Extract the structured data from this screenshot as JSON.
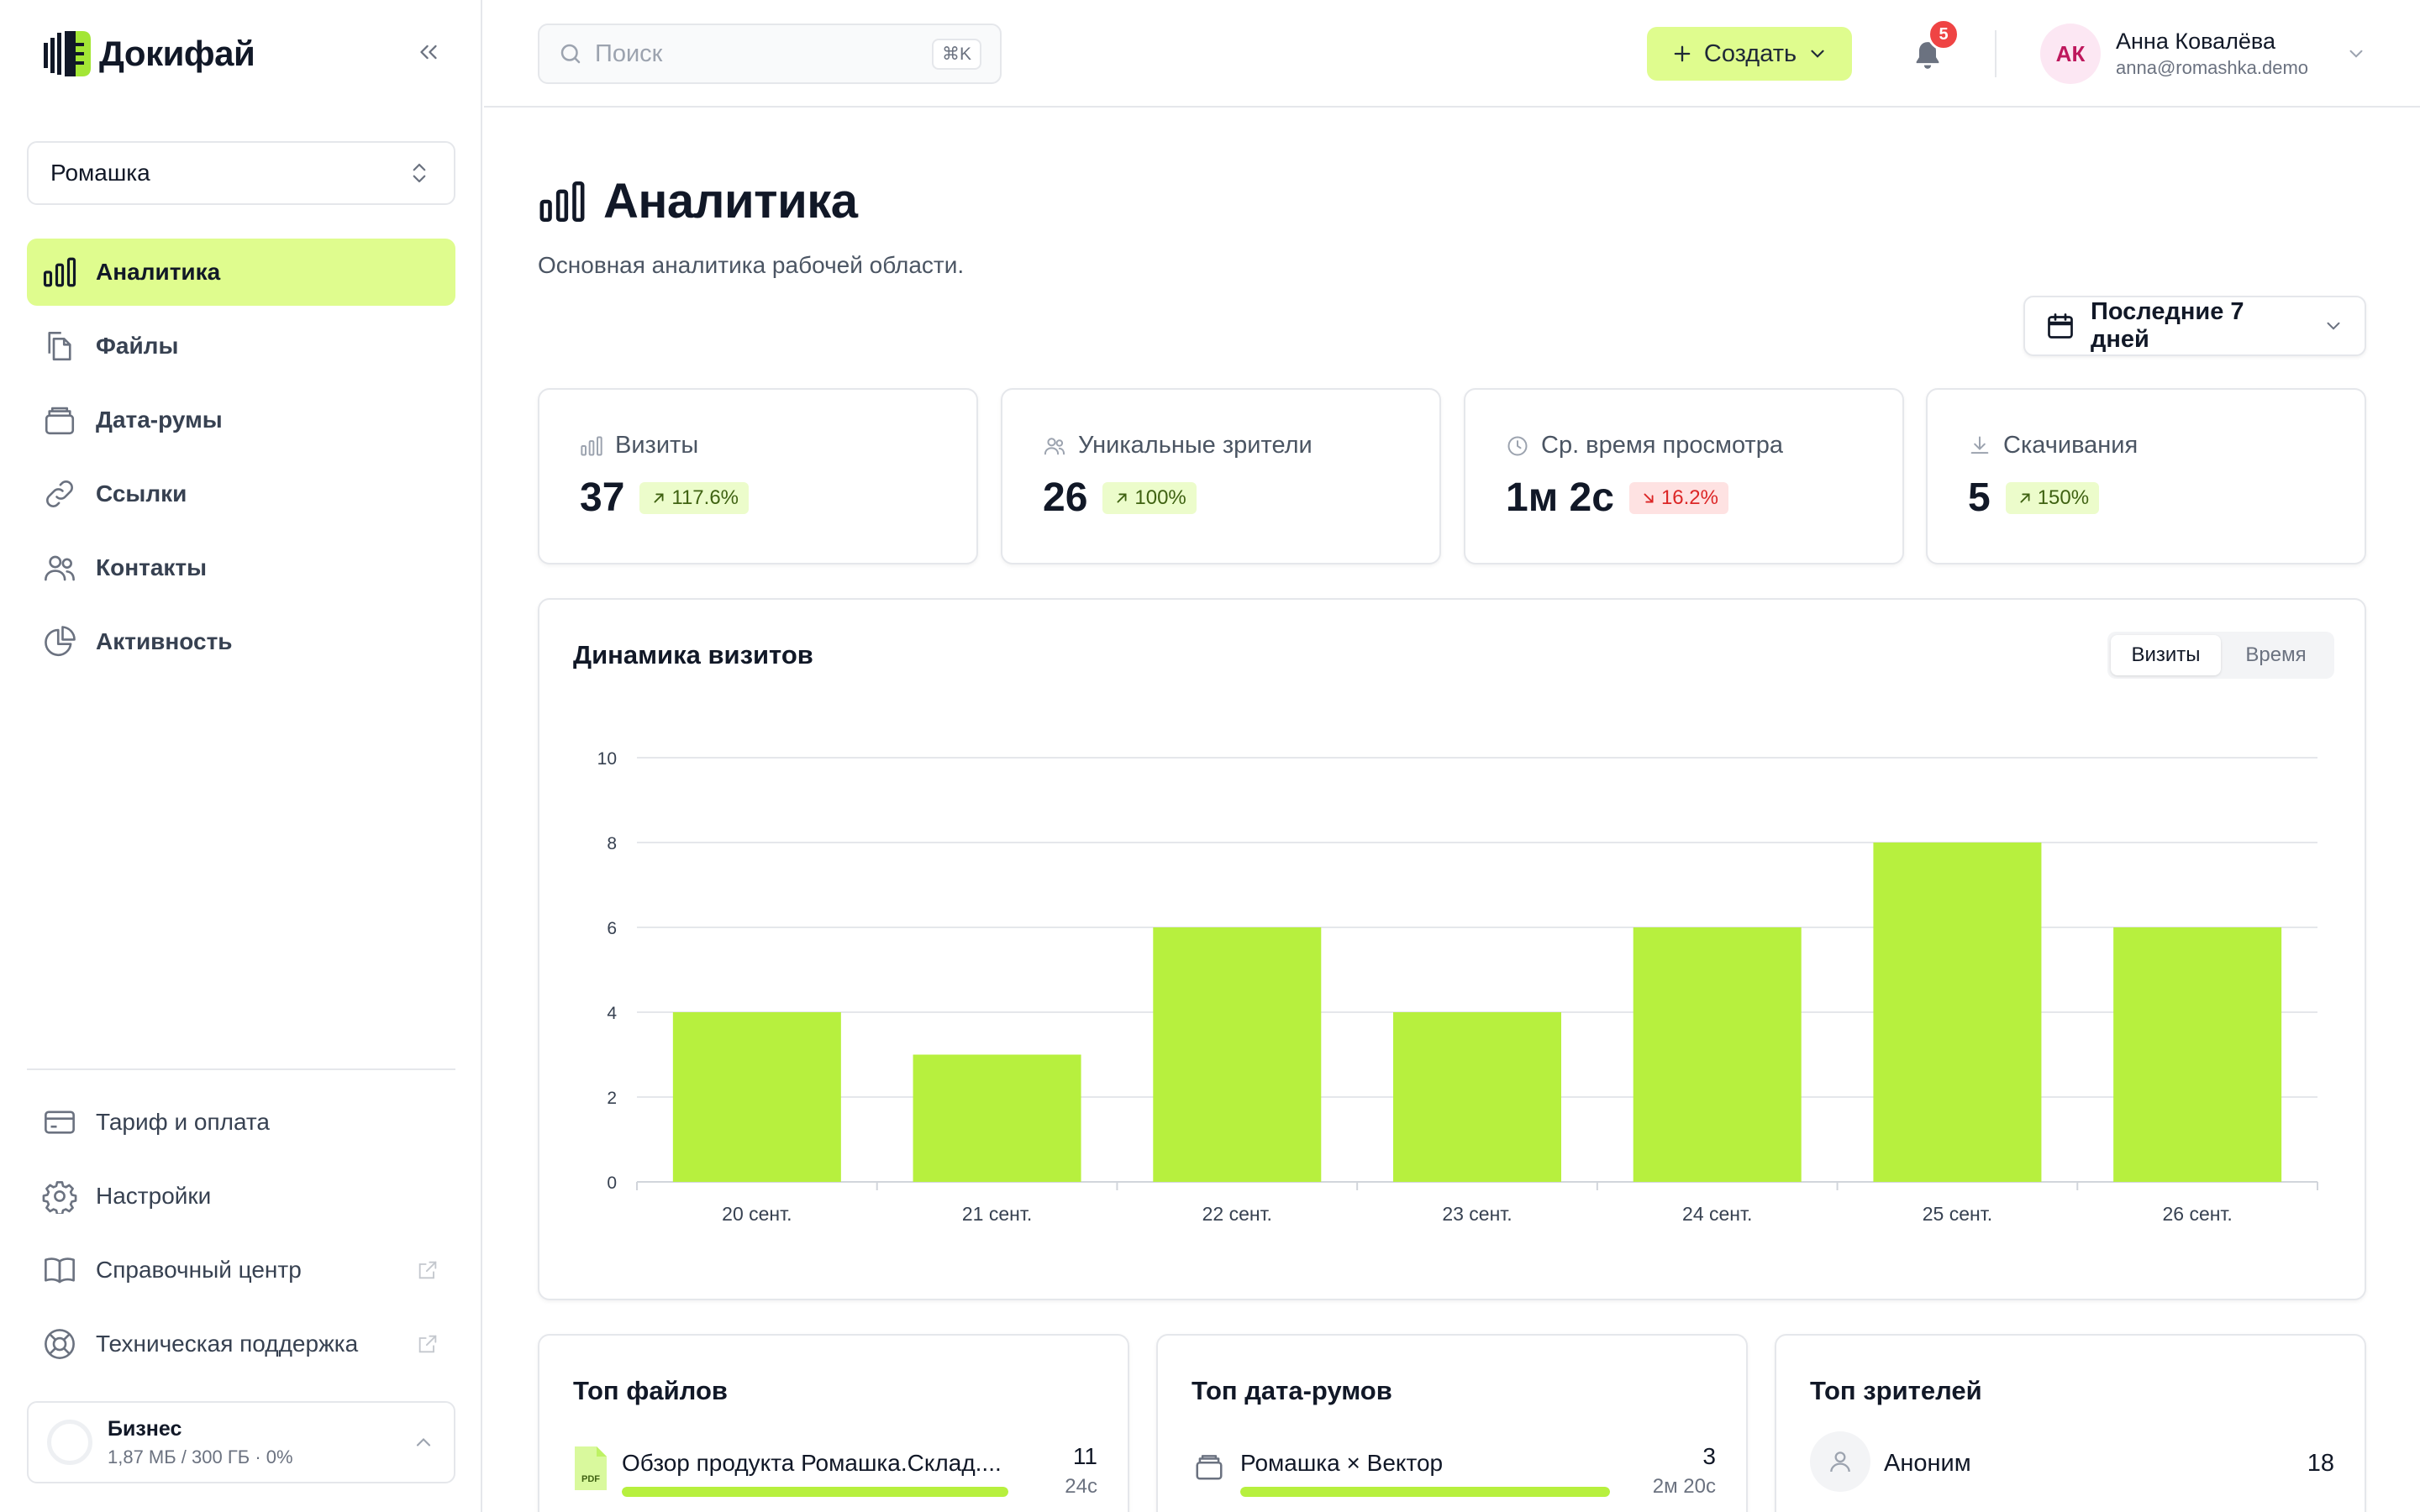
{
  "app": {
    "brand": "Докифай",
    "workspace": "Ромашка"
  },
  "nav": {
    "items": [
      {
        "label": "Аналитика",
        "icon": "bar-chart-icon",
        "active": true
      },
      {
        "label": "Файлы",
        "icon": "files-icon"
      },
      {
        "label": "Дата-румы",
        "icon": "dataroom-icon"
      },
      {
        "label": "Ссылки",
        "icon": "link-icon"
      },
      {
        "label": "Контакты",
        "icon": "contacts-icon"
      },
      {
        "label": "Активность",
        "icon": "pie-chart-icon"
      }
    ],
    "bottom": [
      {
        "label": "Тариф и оплата",
        "icon": "credit-card-icon"
      },
      {
        "label": "Настройки",
        "icon": "gear-icon"
      },
      {
        "label": "Справочный центр",
        "icon": "book-icon",
        "external": true
      },
      {
        "label": "Техническая поддержка",
        "icon": "lifebuoy-icon",
        "external": true
      }
    ]
  },
  "plan": {
    "name": "Бизнес",
    "usage": "1,87 МБ / 300 ГБ · 0%"
  },
  "topbar": {
    "search_placeholder": "Поиск",
    "search_shortcut": "⌘K",
    "create_label": "Создать",
    "notifications_count": "5",
    "user_initials": "АК",
    "user_name": "Анна Ковалёва",
    "user_email": "anna@romashka.demo"
  },
  "page": {
    "title": "Аналитика",
    "subtitle": "Основная аналитика рабочей области.",
    "range_label": "Последние 7 дней"
  },
  "stats": [
    {
      "label": "Визиты",
      "icon": "bar-chart-icon",
      "value": "37",
      "change": "117.6%",
      "direction": "up"
    },
    {
      "label": "Уникальные зрители",
      "icon": "users-icon",
      "value": "26",
      "change": "100%",
      "direction": "up"
    },
    {
      "label": "Ср. время просмотра",
      "icon": "clock-icon",
      "value": "1м 2с",
      "change": "16.2%",
      "direction": "down"
    },
    {
      "label": "Скачивания",
      "icon": "download-icon",
      "value": "5",
      "change": "150%",
      "direction": "up"
    }
  ],
  "chart_section": {
    "title": "Динамика визитов",
    "toggle": [
      "Визиты",
      "Время"
    ],
    "toggle_active": 0
  },
  "chart_data": {
    "type": "bar",
    "categories": [
      "20 сент.",
      "21 сент.",
      "22 сент.",
      "23 сент.",
      "24 сент.",
      "25 сент.",
      "26 сент."
    ],
    "values": [
      4,
      3,
      6,
      4,
      6,
      8,
      6
    ],
    "yticks": [
      0,
      2,
      4,
      6,
      8,
      10
    ],
    "ylim": [
      0,
      10
    ],
    "grid": true,
    "color": "#b7f03e"
  },
  "top_files": {
    "title": "Топ файлов",
    "items": [
      {
        "name": "Обзор продукта Ромашка.Склад....",
        "count": "11",
        "time": "24с",
        "share": 1.0
      }
    ]
  },
  "top_datarooms": {
    "title": "Топ дата-румов",
    "items": [
      {
        "name": "Ромашка × Вектор",
        "count": "3",
        "time": "2м 20с",
        "share": 1.0
      }
    ]
  },
  "top_viewers": {
    "title": "Топ зрителей",
    "items": [
      {
        "name": "Аноним",
        "count": "18"
      }
    ]
  },
  "colors": {
    "accent": "#dffc8e",
    "bar": "#b7f03e",
    "positive_bg": "#ecfccb",
    "negative_bg": "#fee2e2",
    "badge": "#ef4444"
  }
}
